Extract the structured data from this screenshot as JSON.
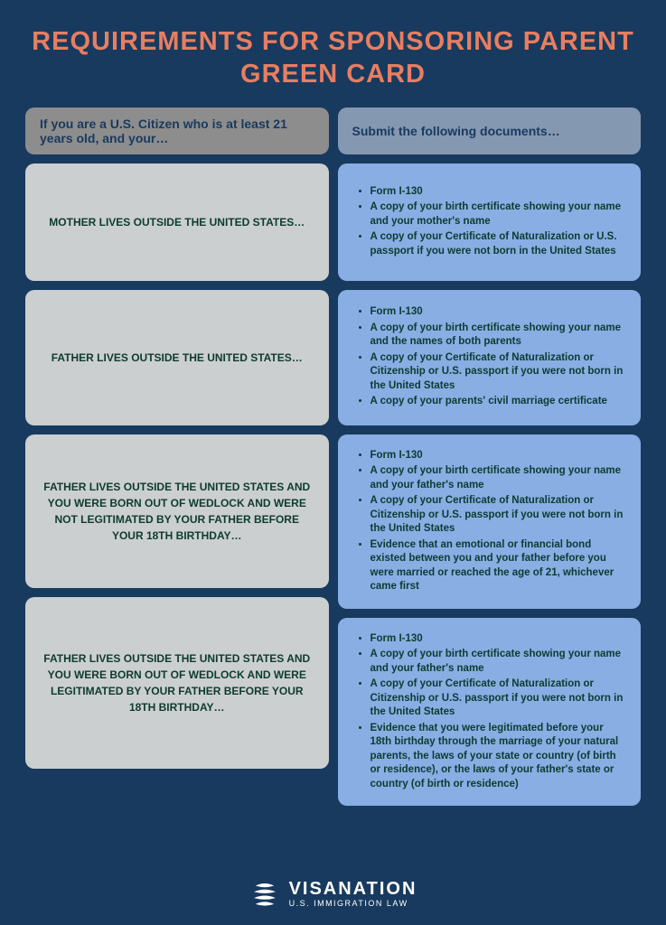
{
  "title": "REQUIREMENTS FOR SPONSORING PARENT GREEN CARD",
  "headers": {
    "left": "If you are a U.S. Citizen who is at least 21 years old, and your…",
    "right": "Submit the following documents…"
  },
  "rows": [
    {
      "scenario": "MOTHER LIVES OUTSIDE THE UNITED STATES…",
      "docs": [
        "Form I-130",
        "A copy of your birth certificate showing your name and your mother's name",
        "A copy of your Certificate of Naturalization or U.S. passport if you were not born in the United States"
      ]
    },
    {
      "scenario": "FATHER LIVES OUTSIDE THE UNITED STATES…",
      "docs": [
        "Form I-130",
        "A copy of your birth certificate showing your name and the names of both parents",
        "A copy of your Certificate of Naturalization or Citizenship or U.S. passport if you were not born in the United States",
        "A copy of your parents' civil marriage certificate"
      ]
    },
    {
      "scenario": "FATHER LIVES OUTSIDE THE UNITED STATES AND YOU WERE BORN OUT OF WEDLOCK AND WERE NOT LEGITIMATED BY YOUR FATHER BEFORE YOUR 18TH BIRTHDAY…",
      "docs": [
        "Form I-130",
        "A copy of your birth certificate showing your name and your father's name",
        "A copy of your Certificate of Naturalization or Citizenship or U.S. passport if you were not born in the United States",
        "Evidence that an emotional or financial bond existed between you and your father before you were married or reached the age of 21, whichever came first"
      ]
    },
    {
      "scenario": "FATHER LIVES OUTSIDE THE UNITED STATES AND YOU WERE BORN OUT OF WEDLOCK AND WERE LEGITIMATED BY YOUR FATHER BEFORE YOUR 18TH BIRTHDAY…",
      "docs": [
        "Form I-130",
        "A copy of your birth certificate showing your name and your father's name",
        "A copy of your Certificate of Naturalization or Citizenship or U.S. passport if you were not born in the United States",
        "Evidence that you were legitimated before your 18th birthday through the marriage of your natural parents, the laws of your state or country (of birth or residence), or the laws of your father's state or country (of birth or residence)"
      ]
    }
  ],
  "footer": {
    "brand": "VISANATION",
    "sub": "U.S. IMMIGRATION LAW"
  },
  "colors": {
    "bg": "#183a5e",
    "title": "#e87e61",
    "leftHeader": "#8d8d8d",
    "rightHeader": "#8598b2",
    "leftCard": "#cccfcf",
    "rightCard": "#88aee4",
    "textDark": "#0d3b30"
  }
}
